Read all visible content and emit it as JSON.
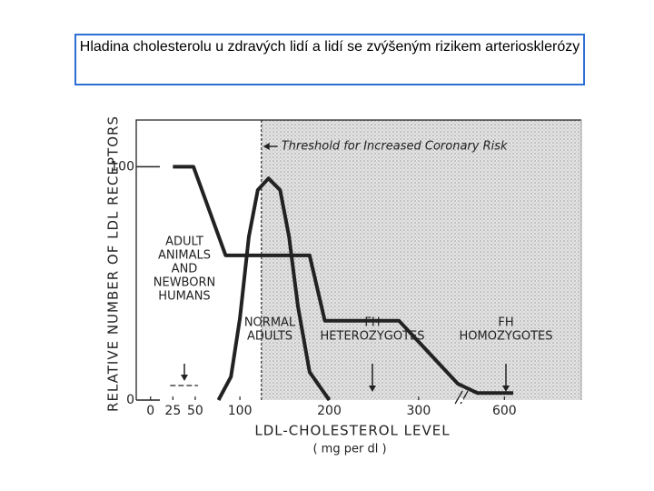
{
  "title": "Hladina cholesterolu u zdravých lidí a lidí se zvýšeným rizikem arteriosklerózy",
  "chart_data": {
    "type": "line",
    "y_label": "RELATIVE NUMBER OF LDL RECEPTORS",
    "x_label": "LDL-CHOLESTEROL LEVEL",
    "x_unit": "( mg per dl )",
    "xlim": [
      -16,
      869
    ],
    "ylim": [
      0,
      120
    ],
    "xticks": [
      0,
      25,
      50,
      100,
      200,
      300,
      600
    ],
    "yticks": [
      0,
      100
    ],
    "x_axis_break": true,
    "threshold": {
      "x": 124,
      "label": "Threshold for Increased Coronary Risk"
    },
    "series": [
      {
        "color": "#222222",
        "x": [
          25,
          48,
          84,
          178,
          195,
          278,
          437,
          506,
          631
        ],
        "values": [
          100,
          100,
          62,
          62,
          34,
          34,
          7,
          3,
          3
        ]
      },
      {
        "color": "#222222",
        "x": [
          76,
          90,
          100,
          110,
          120,
          132,
          145,
          155,
          165,
          178,
          200
        ],
        "values": [
          0,
          10,
          35,
          70,
          90,
          95,
          90,
          70,
          40,
          12,
          0
        ]
      }
    ],
    "annotations": [
      [
        "ADULT",
        "ANIMALS",
        "AND",
        "NEWBORN",
        "HUMANS"
      ],
      [
        "NORMAL",
        "ADULTS"
      ],
      [
        "FH",
        "HETEROZYGOTES"
      ],
      [
        "FH",
        "HOMOZYGOTES"
      ]
    ]
  }
}
